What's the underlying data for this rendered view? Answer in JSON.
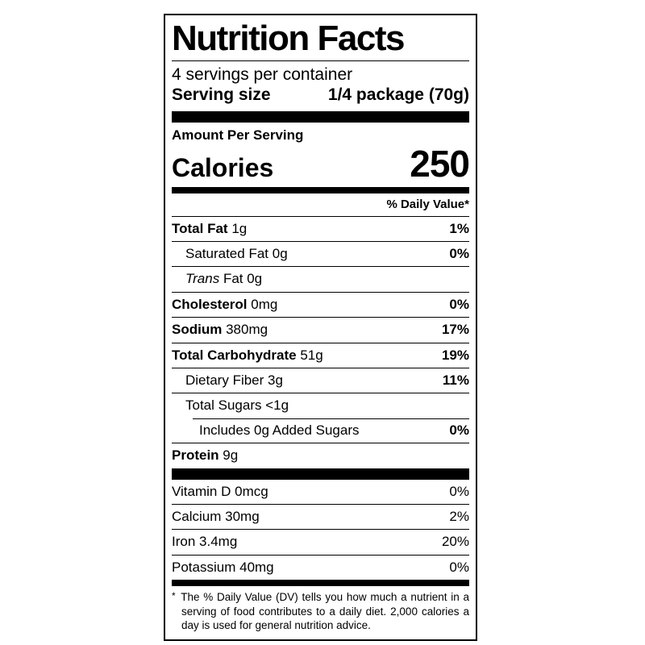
{
  "label": {
    "title": "Nutrition Facts",
    "servings_per_container": "4 servings per container",
    "serving_size": {
      "label": "Serving size",
      "value": "1/4 package (70g)"
    },
    "amount_per_serving": "Amount Per Serving",
    "calories": {
      "label": "Calories",
      "value": "250"
    },
    "daily_value_header": "% Daily Value*",
    "nutrients": [
      {
        "name": "Total Fat",
        "amount": "1g",
        "dv": "1%"
      },
      {
        "name": "Saturated Fat",
        "amount": "0g",
        "dv": "0%"
      },
      {
        "name": "Trans",
        "amount": "Fat 0g",
        "dv": ""
      },
      {
        "name": "Cholesterol",
        "amount": "0mg",
        "dv": "0%"
      },
      {
        "name": "Sodium",
        "amount": "380mg",
        "dv": "17%"
      },
      {
        "name": "Total Carbohydrate",
        "amount": "51g",
        "dv": "19%"
      },
      {
        "name": "Dietary Fiber",
        "amount": "3g",
        "dv": "11%"
      },
      {
        "name": "Total Sugars",
        "amount": "<1g",
        "dv": ""
      },
      {
        "name": "Includes 0g Added Sugars",
        "amount": "",
        "dv": "0%"
      },
      {
        "name": "Protein",
        "amount": "9g",
        "dv": ""
      }
    ],
    "vitamins": [
      {
        "name": "Vitamin D",
        "amount": "0mcg",
        "dv": "0%"
      },
      {
        "name": "Calcium",
        "amount": "30mg",
        "dv": "2%"
      },
      {
        "name": "Iron",
        "amount": "3.4mg",
        "dv": "20%"
      },
      {
        "name": "Potassium",
        "amount": "40mg",
        "dv": "0%"
      }
    ],
    "footnote": {
      "marker": "*",
      "text": "The % Daily Value (DV) tells you how much a nutrient in a serving of food contributes to a daily diet. 2,000 calories a day is used for general nutrition advice."
    },
    "colors": {
      "ink": "#000000",
      "background": "#ffffff"
    }
  }
}
